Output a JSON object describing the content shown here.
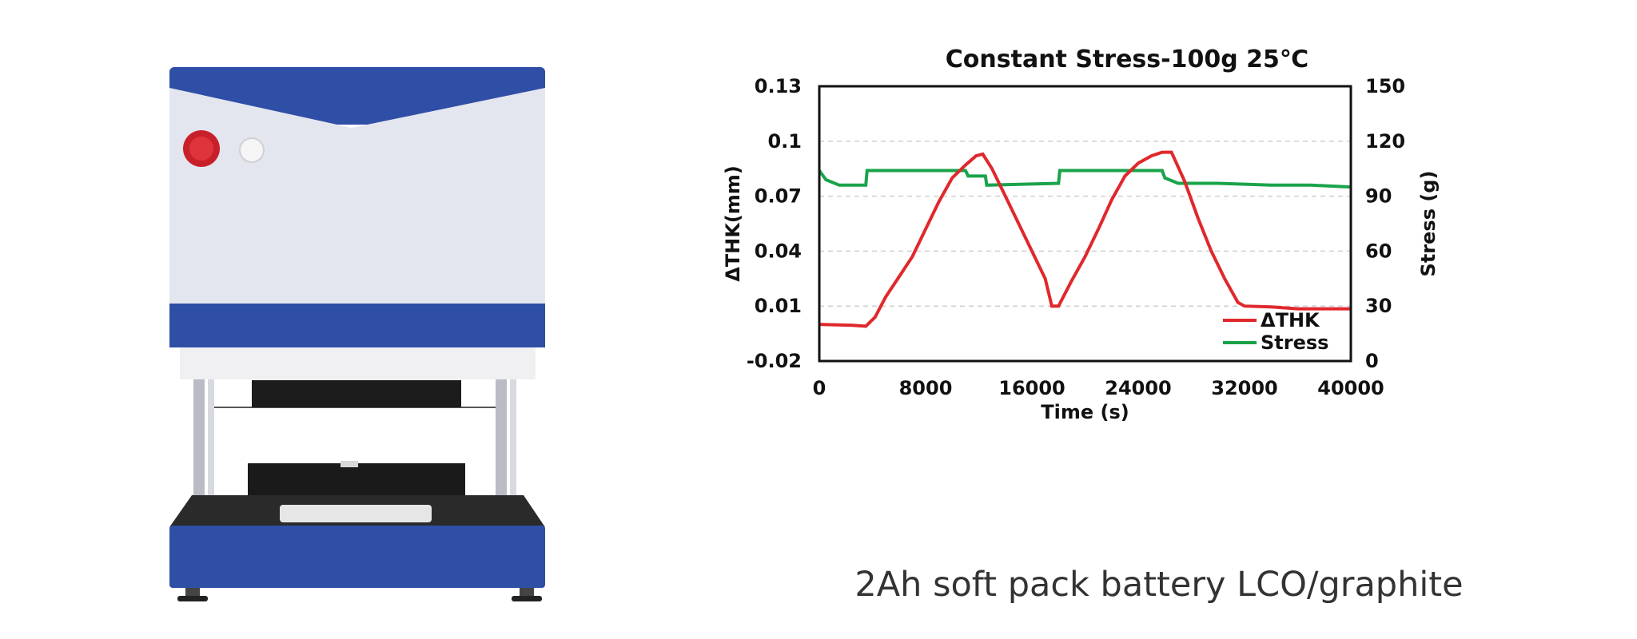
{
  "caption": "2Ah soft pack battery LCO/graphite",
  "image": {
    "subject": "battery swelling test instrument",
    "colors": {
      "accent": "#2f4fa6",
      "body": "#e4e6ef",
      "button": "#c8202a"
    }
  },
  "chart_data": {
    "type": "line",
    "title": "Constant Stress-100g 25℃",
    "xlabel": "Time (s)",
    "ylabel": "ΔTHK(mm)",
    "y2label": "Stress (g)",
    "xlim": [
      0,
      40000
    ],
    "ylim": [
      -0.02,
      0.13
    ],
    "y2lim": [
      0,
      150
    ],
    "xticks": [
      "0",
      "8000",
      "16000",
      "24000",
      "32000",
      "40000"
    ],
    "yticks": [
      "-0.02",
      "0.01",
      "0.04",
      "0.07",
      "0.1",
      "0.13"
    ],
    "y2ticks": [
      "0",
      "30",
      "60",
      "90",
      "120",
      "150"
    ],
    "grid": "horizontal dashed",
    "legend_position": "bottom-right",
    "colors": {
      "thk": "#e0282c",
      "stress": "#1aa34a"
    },
    "series": [
      {
        "name": "ΔTHK",
        "axis": "left",
        "x": [
          0,
          2500,
          3500,
          4200,
          5000,
          6000,
          7000,
          8000,
          9000,
          10000,
          11000,
          11800,
          12300,
          13000,
          14000,
          15000,
          16000,
          17000,
          17500,
          18000,
          19000,
          20000,
          21000,
          22000,
          23000,
          24000,
          25000,
          25800,
          26500,
          27500,
          28500,
          29500,
          30500,
          31500,
          32000,
          34000,
          36000,
          38000,
          40000
        ],
        "y": [
          0.0,
          -0.0005,
          -0.001,
          0.004,
          0.015,
          0.026,
          0.037,
          0.052,
          0.067,
          0.08,
          0.087,
          0.092,
          0.093,
          0.085,
          0.07,
          0.055,
          0.04,
          0.025,
          0.01,
          0.01,
          0.024,
          0.037,
          0.052,
          0.068,
          0.081,
          0.088,
          0.092,
          0.094,
          0.094,
          0.078,
          0.058,
          0.04,
          0.025,
          0.012,
          0.01,
          0.0095,
          0.0085,
          0.0085,
          0.0085
        ]
      },
      {
        "name": "Stress",
        "axis": "right",
        "x": [
          0,
          500,
          1500,
          3500,
          3600,
          11000,
          11200,
          12500,
          12600,
          18000,
          18100,
          25800,
          26000,
          27000,
          30000,
          34000,
          37000,
          40000
        ],
        "y": [
          104,
          99,
          96,
          96,
          104,
          104,
          101,
          101,
          96,
          97,
          104,
          104,
          100,
          97,
          97,
          96,
          96,
          95
        ]
      }
    ]
  }
}
